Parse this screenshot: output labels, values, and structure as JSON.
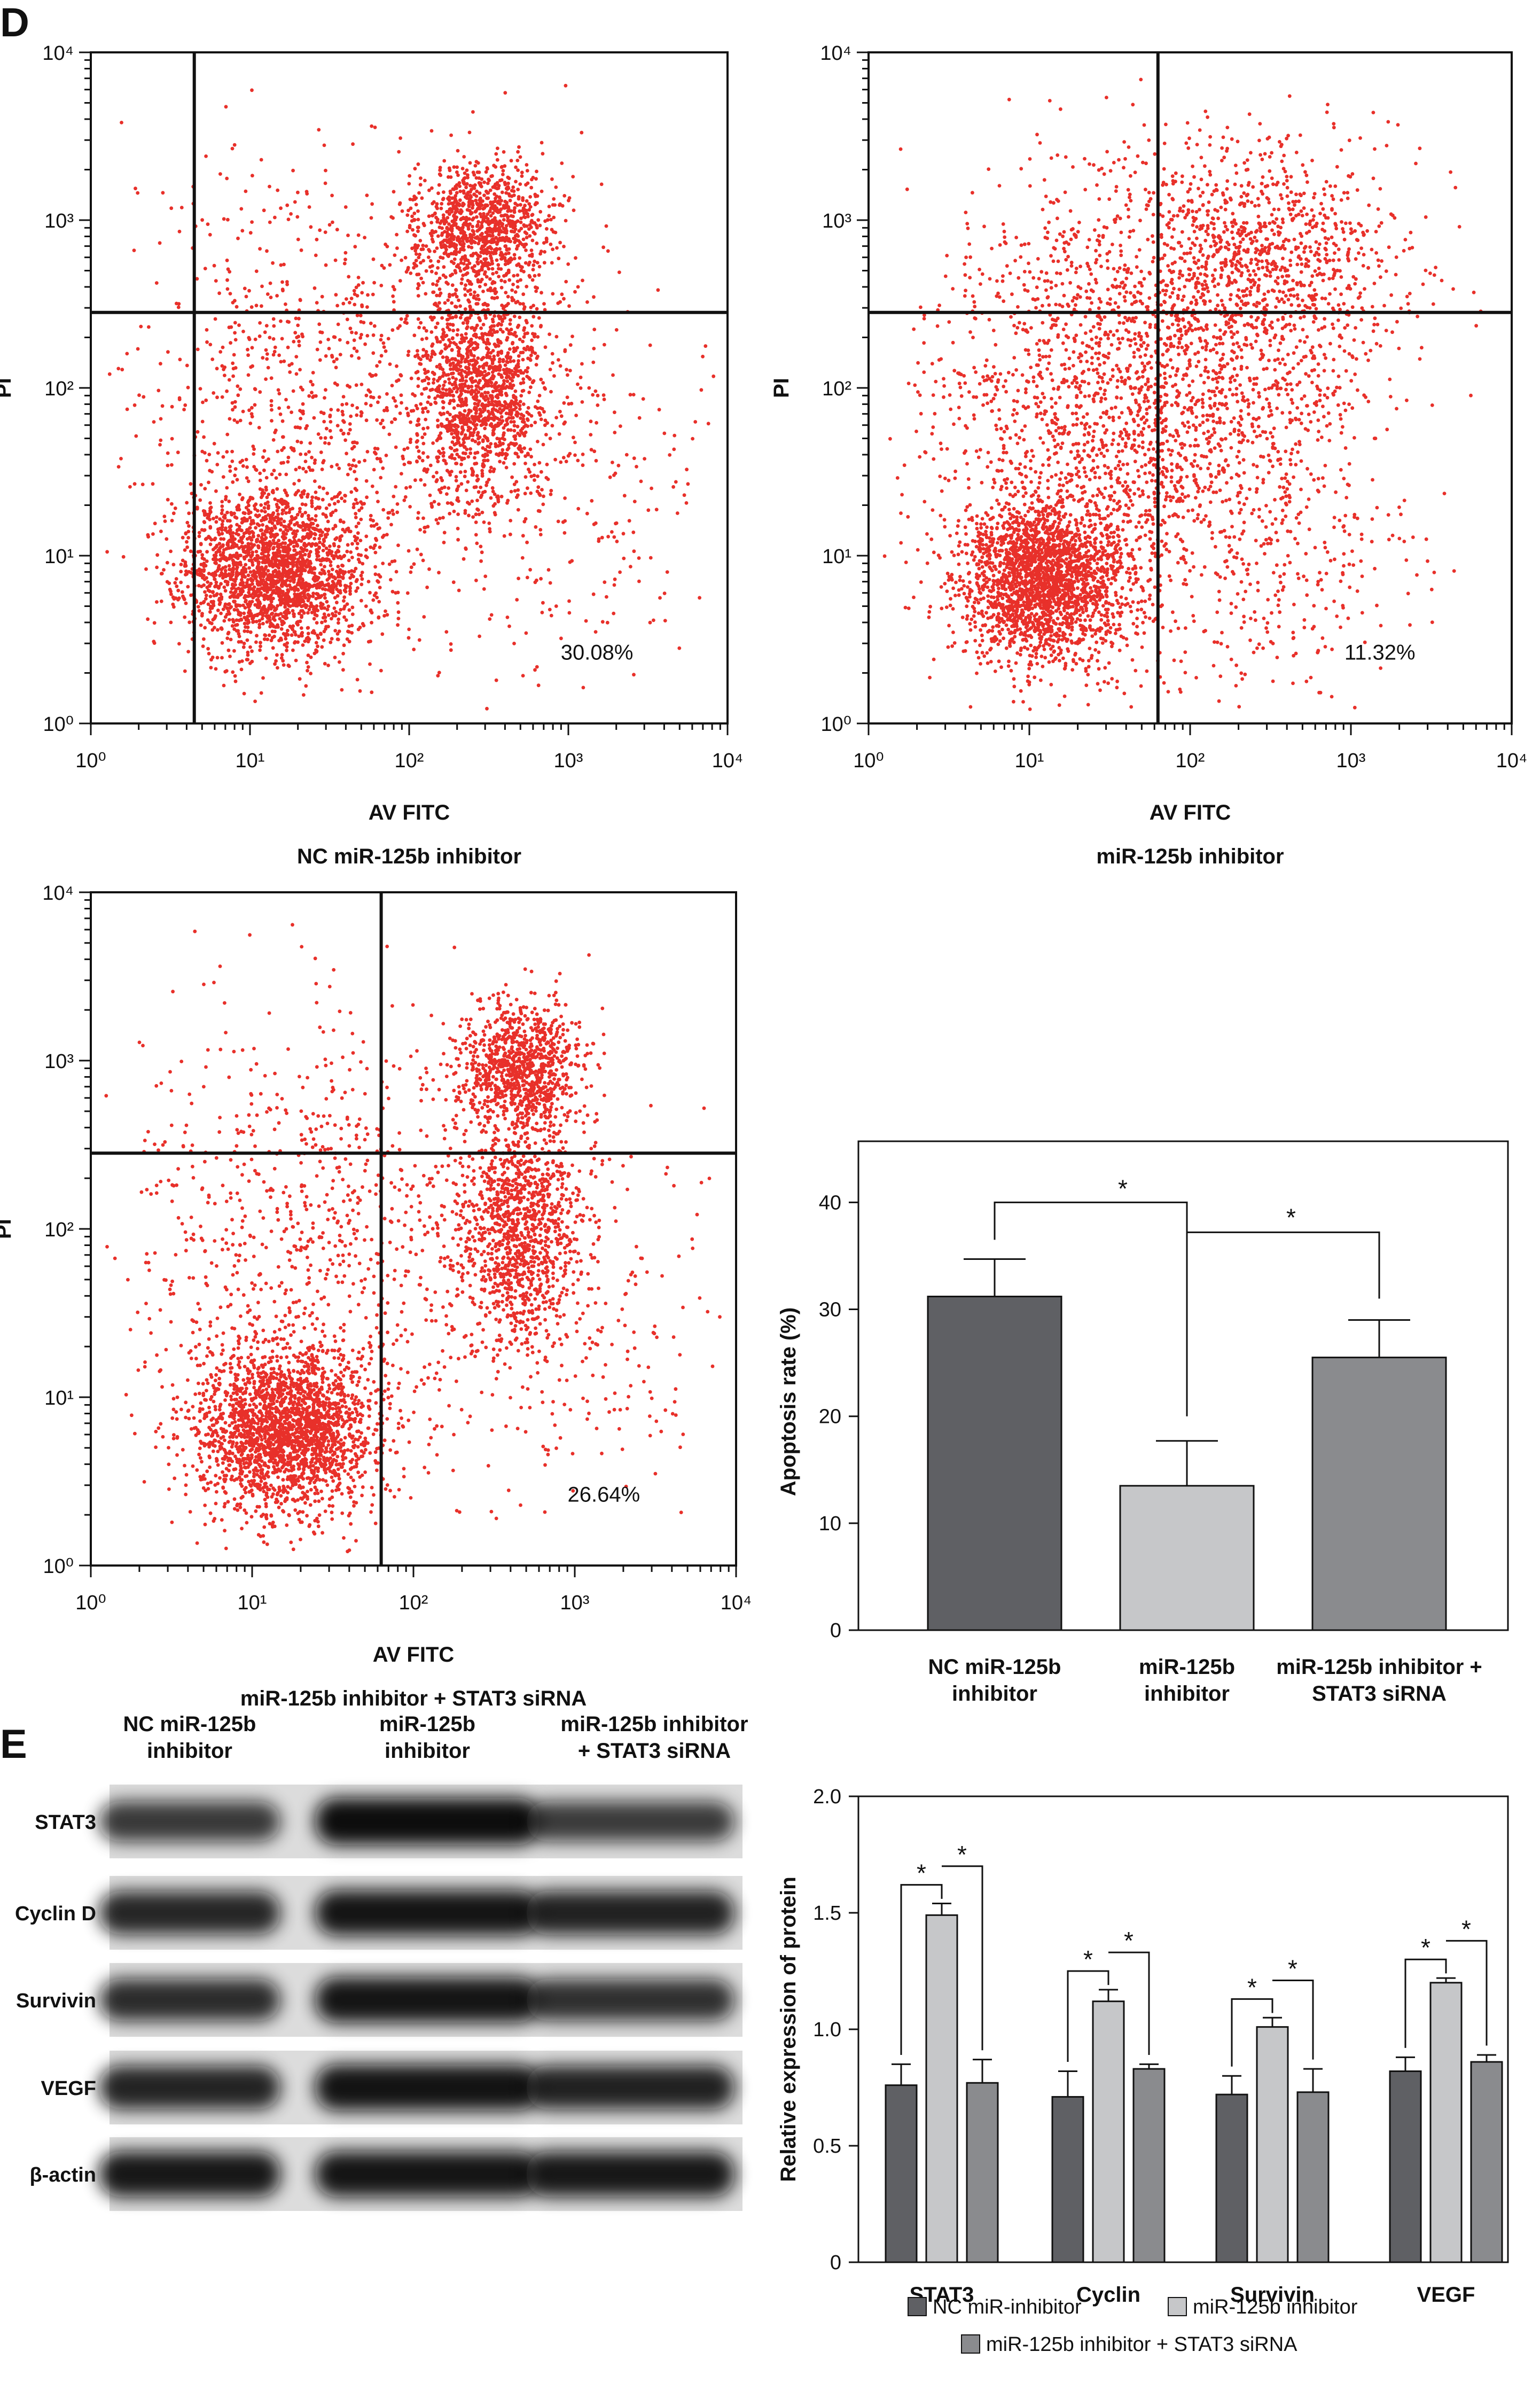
{
  "panels": {
    "D": "D",
    "E": "E"
  },
  "flow_plots": [
    {
      "xlabel": "AV FITC",
      "ylabel": "PI",
      "subtitle": "NC miR-125b inhibitor",
      "percent": "30.08%",
      "x_ticks": [
        "10⁰",
        "10¹",
        "10²",
        "10³",
        "10⁴"
      ],
      "y_ticks": [
        "10⁰",
        "10¹",
        "10²",
        "10³",
        "10⁴"
      ],
      "x_gate_decades": 0.65,
      "y_gate_decades": 2.45,
      "cell_color": "#e8302a"
    },
    {
      "xlabel": "AV FITC",
      "ylabel": "PI",
      "subtitle": "miR-125b inhibitor",
      "percent": "11.32%",
      "x_ticks": [
        "10⁰",
        "10¹",
        "10²",
        "10³",
        "10⁴"
      ],
      "y_ticks": [
        "10⁰",
        "10¹",
        "10²",
        "10³",
        "10⁴"
      ],
      "x_gate_decades": 1.8,
      "y_gate_decades": 2.45,
      "cell_color": "#e8302a"
    },
    {
      "xlabel": "AV FITC",
      "ylabel": "PI",
      "subtitle": "miR-125b inhibitor + STAT3 siRNA",
      "percent": "26.64%",
      "x_ticks": [
        "10⁰",
        "10¹",
        "10²",
        "10³",
        "10⁴"
      ],
      "y_ticks": [
        "10⁰",
        "10¹",
        "10²",
        "10³",
        "10⁴"
      ],
      "x_gate_decades": 1.8,
      "y_gate_decades": 2.45,
      "cell_color": "#e8302a"
    }
  ],
  "chart_data": [
    {
      "type": "bar",
      "ylabel": "Apoptosis rate (%)",
      "ylim": [
        0,
        40
      ],
      "yticks": [
        0,
        10,
        20,
        30,
        40
      ],
      "categories": [
        [
          "NC miR-125b",
          "inhibitor"
        ],
        [
          "miR-125b",
          "inhibitor"
        ],
        [
          "miR-125b inhibitor +",
          "STAT3 siRNA"
        ]
      ],
      "values": [
        31.2,
        13.5,
        25.5
      ],
      "errors": [
        3.5,
        4.2,
        3.5
      ],
      "colors": [
        "#5f6064",
        "#c6c7c9",
        "#8a8b8e"
      ],
      "significance": [
        {
          "from": 0,
          "to": 1,
          "label": "*"
        },
        {
          "from": 1,
          "to": 2,
          "label": "*"
        }
      ]
    },
    {
      "type": "bar",
      "ylabel": "Relative expression of protein",
      "ylim": [
        0,
        2.0
      ],
      "yticks": [
        "0",
        "0.5",
        "1.0",
        "1.5",
        "2.0"
      ],
      "categories": [
        "STAT3",
        "Cyclin",
        "Survivin",
        "VEGF"
      ],
      "series": [
        {
          "name": "NC miR-inhibitor",
          "values": [
            0.76,
            0.71,
            0.72,
            0.82
          ],
          "errors": [
            0.09,
            0.11,
            0.08,
            0.06
          ],
          "color": "#5f6064"
        },
        {
          "name": "miR-125b inhibitor",
          "values": [
            1.49,
            1.12,
            1.01,
            1.2
          ],
          "errors": [
            0.05,
            0.05,
            0.04,
            0.02
          ],
          "color": "#c6c7c9"
        },
        {
          "name": "miR-125b inhibitor + STAT3 siRNA",
          "values": [
            0.77,
            0.83,
            0.73,
            0.86
          ],
          "errors": [
            0.1,
            0.02,
            0.1,
            0.03
          ],
          "color": "#8a8b8e"
        }
      ],
      "significance_label": "*",
      "legend_position": "bottom"
    }
  ],
  "western_blot": {
    "lanes": [
      [
        "NC miR-125b",
        "inhibitor"
      ],
      [
        "miR-125b",
        "inhibitor"
      ],
      [
        "miR-125b inhibitor",
        "+ STAT3 siRNA"
      ]
    ],
    "rows": [
      {
        "label": "STAT3",
        "intensity": [
          0.62,
          1.0,
          0.6
        ]
      },
      {
        "label": "Cyclin D",
        "intensity": [
          0.78,
          0.92,
          0.82
        ]
      },
      {
        "label": "Survivin",
        "intensity": [
          0.72,
          0.92,
          0.7
        ]
      },
      {
        "label": "VEGF",
        "intensity": [
          0.8,
          0.95,
          0.82
        ]
      },
      {
        "label": "β-actin",
        "intensity": [
          0.9,
          0.92,
          0.9
        ]
      }
    ]
  }
}
